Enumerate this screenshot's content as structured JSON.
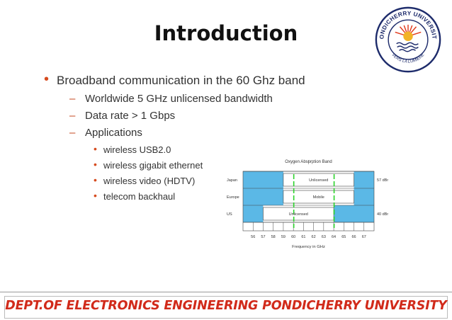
{
  "slide": {
    "title": "Introduction",
    "bullets": [
      {
        "text": "Broadband communication in the 60 Ghz band",
        "sub": [
          {
            "text": "Worldwide 5 GHz unlicensed bandwidth"
          },
          {
            "text": "Data rate > 1 Gbps"
          },
          {
            "text": "Applications",
            "sub": [
              "wireless USB2.0",
              "wireless gigabit ethernet",
              "wireless video (HDTV)",
              "telecom backhaul"
            ]
          }
        ]
      }
    ],
    "footer": "DEPT.OF ELECTRONICS ENGINEERING PONDICHERRY UNIVERSITY"
  },
  "logo": {
    "name": "PONDICHERRY UNIVERSITY",
    "motto": "VERS LA LUMIERE",
    "colors": {
      "ring": "#1d2b6b",
      "sun": "#f2b325",
      "rays": "#e23a1c"
    }
  },
  "spectrum_chart": {
    "title": "Oxygen Absorption Band",
    "rows": [
      {
        "region": "Japan",
        "band_label": "Unlicensed",
        "power_label": "57 dBm",
        "ghz_from": 59,
        "ghz_to": 66
      },
      {
        "region": "Europe",
        "band_label": "Mobile",
        "power_label": "",
        "ghz_from": 59,
        "ghz_to": 66
      },
      {
        "region": "US",
        "band_label": "Unlicensed",
        "power_label": "40 dBm",
        "ghz_from": 57,
        "ghz_to": 64
      }
    ],
    "x_ticks": [
      "56",
      "57",
      "58",
      "59",
      "60",
      "61",
      "62",
      "63",
      "64",
      "65",
      "66",
      "67"
    ],
    "xlabel": "Frequency in GHz",
    "colors": {
      "blocked": "#5bb8e6",
      "marker": "#2bd32b"
    }
  }
}
